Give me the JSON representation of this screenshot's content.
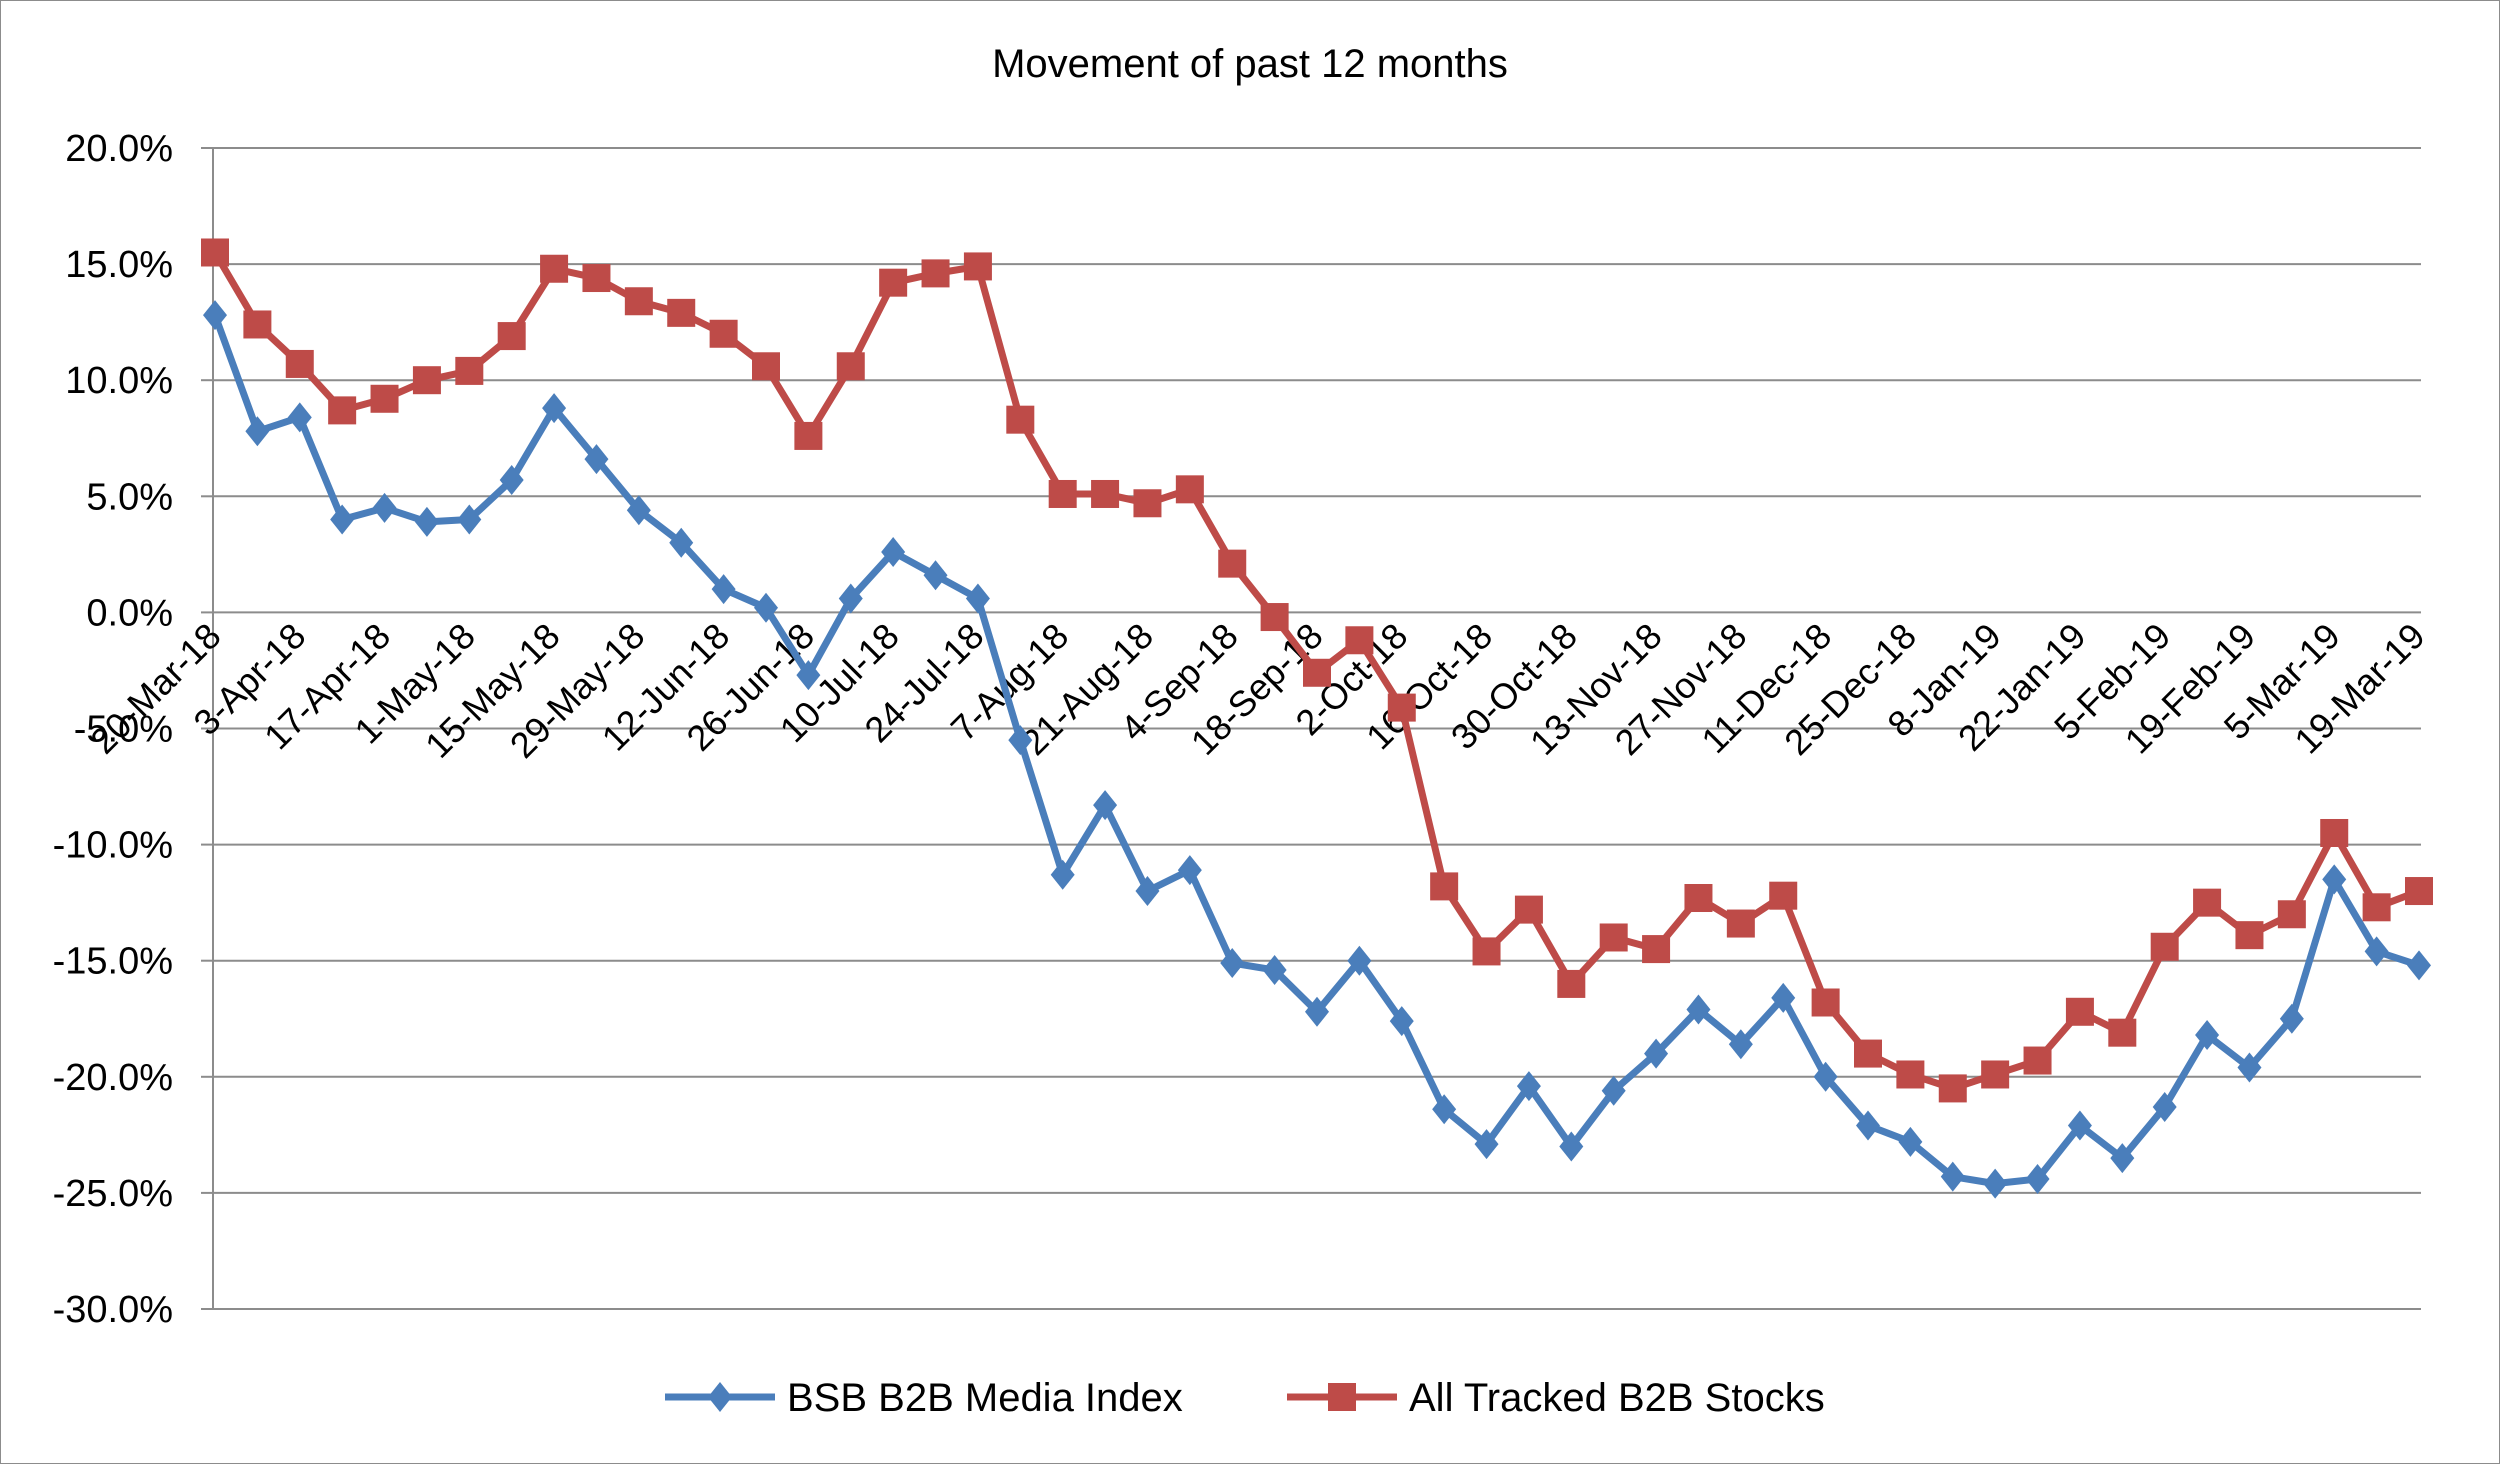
{
  "chart_data": {
    "type": "line",
    "title": "Movement of past 12 months",
    "xlabel": "",
    "ylabel": "",
    "ylim": [
      -30,
      20
    ],
    "y_tick_step": 5,
    "y_tick_format": "percent_1dp",
    "grid": "horizontal",
    "legend_position": "bottom",
    "x_tick_labels": [
      "20-Mar-18",
      "3-Apr-18",
      "17-Apr-18",
      "1-May-18",
      "15-May-18",
      "29-May-18",
      "12-Jun-18",
      "26-Jun-18",
      "10-Jul-18",
      "24-Jul-18",
      "7-Aug-18",
      "21-Aug-18",
      "4-Sep-18",
      "18-Sep-18",
      "2-Oct-18",
      "16-Oct-18",
      "30-Oct-18",
      "13-Nov-18",
      "27-Nov-18",
      "11-Dec-18",
      "25-Dec-18",
      "8-Jan-19",
      "22-Jan-19",
      "5-Feb-19",
      "19-Feb-19",
      "5-Mar-19",
      "19-Mar-19"
    ],
    "x_start": "2018-03-20",
    "x_end": "2019-03-19",
    "series": [
      {
        "name": "BSB B2B Media Index",
        "color": "#4A7EBB",
        "marker": "diamond",
        "values": [
          12.8,
          7.8,
          8.4,
          4.0,
          4.5,
          3.9,
          4.0,
          5.7,
          8.8,
          6.6,
          4.4,
          3.0,
          1.0,
          0.2,
          -2.7,
          0.6,
          2.6,
          1.6,
          0.6,
          -5.5,
          -11.3,
          -8.3,
          -12.0,
          -11.1,
          -15.1,
          -15.4,
          -17.2,
          -15.0,
          -17.6,
          -21.4,
          -22.9,
          -20.4,
          -23.0,
          -20.6,
          -19.0,
          -17.1,
          -18.6,
          -16.6,
          -20.0,
          -22.1,
          -22.8,
          -24.3,
          -24.6,
          -24.4,
          -22.1,
          -23.5,
          -21.3,
          -18.2,
          -19.6,
          -17.5,
          -11.5,
          -14.6,
          -15.2
        ]
      },
      {
        "name": "All Tracked B2B Stocks",
        "color": "#BE4B48",
        "marker": "square",
        "values": [
          15.5,
          12.4,
          10.7,
          8.7,
          9.2,
          10.0,
          10.4,
          11.9,
          14.8,
          14.4,
          13.4,
          12.9,
          12.0,
          10.6,
          7.6,
          10.6,
          14.2,
          14.6,
          14.9,
          8.3,
          5.1,
          5.1,
          4.7,
          5.3,
          2.1,
          -0.2,
          -2.6,
          -1.2,
          -4.1,
          -11.8,
          -14.6,
          -12.8,
          -16.0,
          -14.0,
          -14.5,
          -12.3,
          -13.4,
          -12.2,
          -16.8,
          -19.0,
          -19.9,
          -20.5,
          -19.9,
          -19.3,
          -17.2,
          -18.1,
          -14.4,
          -12.5,
          -13.9,
          -13.0,
          -9.5,
          -12.7,
          -12.0
        ]
      }
    ]
  }
}
